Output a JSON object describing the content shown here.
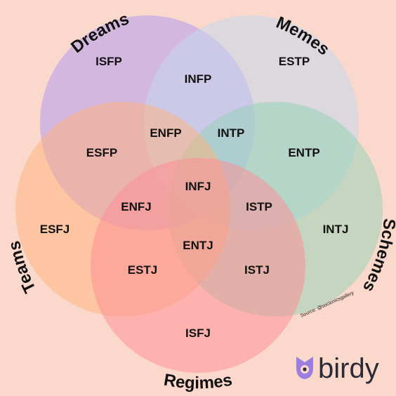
{
  "colors": {
    "background": "#fad8cb",
    "dreams": "#b59cf0",
    "memes": "#c5d8ee",
    "schemes": "#8fd2b4",
    "teams": "#ffb27a",
    "regimes": "#ff8c94",
    "brand_purple": "#9b7de0"
  },
  "sets": {
    "dreams": "Dreams",
    "memes": "Memes",
    "schemes": "Schemes",
    "teams": "Teams",
    "regimes": "Regimes"
  },
  "regions": {
    "isfp": "ISFP",
    "estp": "ESTP",
    "infp": "INFP",
    "enfp": "ENFP",
    "intp": "INTP",
    "esfp": "ESFP",
    "entp": "ENTP",
    "infj": "INFJ",
    "enfj": "ENFJ",
    "istp": "ISTP",
    "esfj": "ESFJ",
    "intj": "INTJ",
    "entj": "ENTJ",
    "estj": "ESTJ",
    "istj": "ISTJ",
    "isfj": "ISFJ"
  },
  "source": "Source: @socionicsgallery",
  "brand": {
    "name": "birdy",
    "icon": "bird-icon"
  }
}
